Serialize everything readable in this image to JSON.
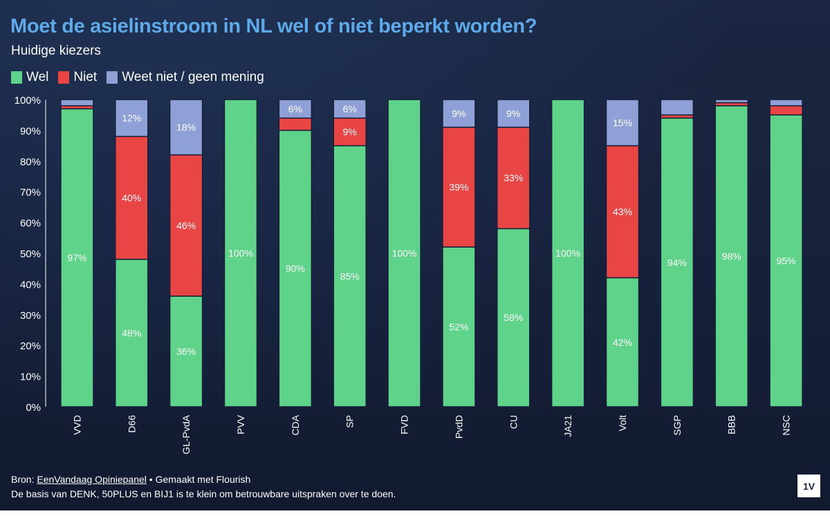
{
  "header": {
    "title": "Moet de asielinstroom in NL wel of niet beperkt worden?",
    "subtitle": "Huidige kiezers"
  },
  "legend": {
    "items": [
      {
        "label": "Wel",
        "color": "#5fd38a"
      },
      {
        "label": "Niet",
        "color": "#e94545"
      },
      {
        "label": "Weet niet / geen mening",
        "color": "#8fa0d6"
      }
    ]
  },
  "footer": {
    "source_prefix": "Bron: ",
    "source_link": "EenVandaag Opiniepanel",
    "source_suffix": " • Gemaakt met Flourish",
    "note": "De basis van DENK, 50PLUS en BIJ1 is te klein om betrouwbare uitspraken over te doen.",
    "logo": "1V"
  },
  "chart_data": {
    "type": "bar",
    "stacked": true,
    "categories": [
      "VVD",
      "D66",
      "GL-PvdA",
      "PVV",
      "CDA",
      "SP",
      "FVD",
      "PvdD",
      "CU",
      "JA21",
      "Volt",
      "SGP",
      "BBB",
      "NSC"
    ],
    "series": [
      {
        "name": "Wel",
        "color": "#5fd38a",
        "values": [
          97,
          48,
          36,
          100,
          90,
          85,
          100,
          52,
          58,
          100,
          42,
          94,
          98,
          95
        ]
      },
      {
        "name": "Niet",
        "color": "#e94545",
        "values": [
          1,
          40,
          46,
          0,
          4,
          9,
          0,
          39,
          33,
          0,
          43,
          1,
          1,
          3
        ]
      },
      {
        "name": "Weet niet / geen mening",
        "color": "#8fa0d6",
        "values": [
          2,
          12,
          18,
          0,
          6,
          6,
          0,
          9,
          9,
          0,
          15,
          5,
          1,
          2
        ]
      }
    ],
    "data_labels": [
      [
        "97%",
        "48%",
        "36%",
        "100%",
        "90%",
        "85%",
        "100%",
        "52%",
        "58%",
        "100%",
        "42%",
        "94%",
        "98%",
        "95%"
      ],
      [
        "",
        "40%",
        "46%",
        "",
        "",
        "9%",
        "",
        "39%",
        "33%",
        "",
        "43%",
        "",
        "",
        ""
      ],
      [
        "",
        "12%",
        "18%",
        "",
        "6%",
        "6%",
        "",
        "9%",
        "9%",
        "",
        "15%",
        "",
        "",
        ""
      ]
    ],
    "y_ticks": [
      "0%",
      "10%",
      "20%",
      "30%",
      "40%",
      "50%",
      "60%",
      "70%",
      "80%",
      "90%",
      "100%"
    ],
    "ylim": [
      0,
      100
    ],
    "grid": false,
    "legend_position": "top-left"
  }
}
